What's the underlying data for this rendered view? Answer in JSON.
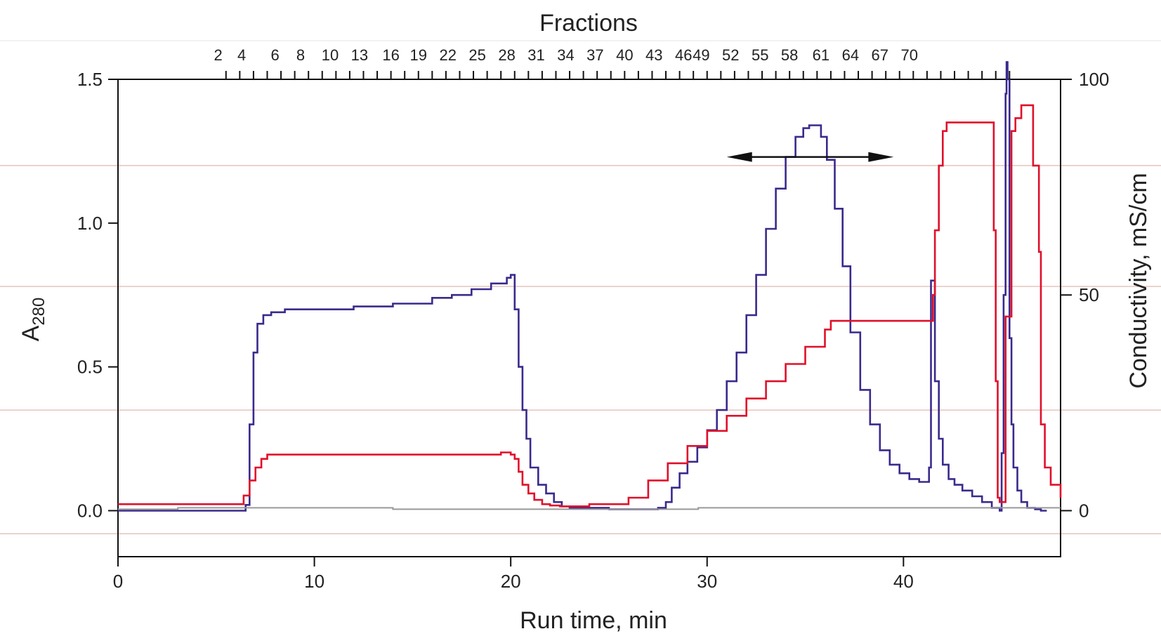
{
  "chart_data": {
    "type": "line",
    "title": "",
    "top_axis": {
      "label": "Fractions",
      "labels": [
        "2",
        "4",
        "6",
        "8",
        "10",
        "13",
        "16",
        "19",
        "22",
        "25",
        "28",
        "31",
        "34",
        "37",
        "40",
        "43",
        "46",
        "49",
        "52",
        "55",
        "58",
        "61",
        "64",
        "67",
        "70"
      ],
      "label_times": [
        5.1,
        6.3,
        8.0,
        9.3,
        10.8,
        12.3,
        13.9,
        15.3,
        16.8,
        18.3,
        19.8,
        21.3,
        22.8,
        24.3,
        25.8,
        27.3,
        28.8,
        29.7,
        31.2,
        32.7,
        34.2,
        35.8,
        37.3,
        38.8,
        40.3
      ],
      "tick_times": [
        5.5,
        6.2,
        6.9,
        7.6,
        8.3,
        9.0,
        9.7,
        10.4,
        11.1,
        11.8,
        12.5,
        13.2,
        13.9,
        14.6,
        15.3,
        16.0,
        16.7,
        17.4,
        18.1,
        18.8,
        19.5,
        20.2,
        20.9,
        21.6,
        22.3,
        23.0,
        23.7,
        24.4,
        25.1,
        25.8,
        26.5,
        27.2,
        27.9,
        28.6,
        29.3,
        30.0,
        30.7,
        31.4,
        32.1,
        32.8,
        33.5,
        34.2,
        34.9,
        35.6,
        36.3,
        37.0,
        37.7,
        38.4,
        39.1,
        39.8,
        40.5,
        41.2,
        41.9,
        42.6,
        43.3,
        44.0,
        44.7,
        45.4
      ]
    },
    "xlabel": "Run time, min",
    "xlim": [
      0,
      48
    ],
    "xticks": [
      0,
      10,
      20,
      30,
      40
    ],
    "ylabel_main": "A",
    "ylabel_sub": "280",
    "ylim": [
      -0.16,
      1.5
    ],
    "yticks": [
      0.0,
      0.5,
      1.0,
      1.5
    ],
    "yticks_labels": [
      "0.0",
      "0.5",
      "1.0",
      "1.5"
    ],
    "y2label": "Conductivity, mS/cm",
    "y2lim": [
      -10.67,
      100
    ],
    "y2ticks": [
      0,
      50,
      100
    ],
    "y2ticks_labels": [
      "0",
      "50",
      "100"
    ],
    "grid_lines_y": [
      1.2,
      0.78,
      0.35,
      -0.08
    ],
    "arrow": {
      "from": 31.0,
      "to": 39.5,
      "y": 1.23
    },
    "series": [
      {
        "name": "",
        "color": "#3a2a8c",
        "x": [
          0,
          6.3,
          6.5,
          6.7,
          6.9,
          7.1,
          7.4,
          7.8,
          8.5,
          10,
          12,
          14,
          16,
          17,
          18,
          19,
          19.8,
          20.0,
          20.2,
          20.4,
          20.6,
          20.8,
          21.0,
          21.4,
          21.8,
          22.2,
          22.6,
          23.0,
          23.5,
          24.0,
          24.5,
          25.0,
          26.0,
          27.0,
          27.5,
          27.9,
          28.2,
          28.6,
          29.0,
          29.5,
          30.0,
          30.5,
          31.0,
          31.5,
          32.0,
          32.5,
          33.0,
          33.5,
          34.0,
          34.5,
          34.9,
          35.2,
          35.5,
          35.8,
          36.1,
          36.5,
          36.9,
          37.3,
          37.8,
          38.3,
          38.8,
          39.3,
          39.8,
          40.3,
          40.8,
          41.0,
          41.3,
          41.4,
          41.6,
          41.8,
          42.0,
          42.3,
          42.6,
          43.0,
          43.5,
          44.0,
          44.5,
          44.9,
          45.0,
          45.1,
          45.2,
          45.25,
          45.3,
          45.4,
          45.5,
          45.6,
          45.8,
          46.0,
          46.3,
          46.7,
          47.0,
          47.3
        ],
        "y": [
          0.0,
          0.0,
          0.02,
          0.3,
          0.55,
          0.65,
          0.68,
          0.69,
          0.7,
          0.7,
          0.71,
          0.72,
          0.74,
          0.75,
          0.77,
          0.79,
          0.81,
          0.82,
          0.7,
          0.5,
          0.35,
          0.25,
          0.15,
          0.09,
          0.06,
          0.03,
          0.015,
          0.01,
          0.01,
          0.01,
          0.01,
          0.005,
          0.005,
          0.005,
          0.01,
          0.03,
          0.08,
          0.13,
          0.17,
          0.22,
          0.28,
          0.35,
          0.45,
          0.55,
          0.68,
          0.82,
          0.98,
          1.12,
          1.23,
          1.3,
          1.33,
          1.34,
          1.34,
          1.3,
          1.22,
          1.05,
          0.85,
          0.62,
          0.42,
          0.3,
          0.21,
          0.16,
          0.13,
          0.11,
          0.1,
          0.1,
          0.15,
          0.8,
          0.45,
          0.25,
          0.16,
          0.11,
          0.09,
          0.07,
          0.05,
          0.03,
          0.01,
          0.0,
          0.2,
          0.75,
          1.45,
          1.56,
          1.5,
          0.6,
          0.3,
          0.15,
          0.07,
          0.03,
          0.01,
          0.005,
          0.0,
          0.0
        ]
      },
      {
        "name": "",
        "color": "#e0102a",
        "x": [
          0,
          6.3,
          6.4,
          6.7,
          7.0,
          7.3,
          7.6,
          7.9,
          8.5,
          10,
          15,
          19.0,
          19.5,
          19.8,
          20.0,
          20.2,
          20.4,
          20.6,
          20.9,
          21.2,
          21.6,
          22.0,
          22.5,
          23.0,
          23.5,
          24.0,
          25.0,
          25.6,
          26.0,
          27.0,
          28.0,
          29.0,
          30.0,
          31.0,
          32.0,
          33.0,
          34.0,
          35.0,
          36.0,
          36.3,
          37.0,
          38.0,
          39.0,
          40.0,
          41.0,
          41.3,
          41.4,
          41.5,
          41.6,
          41.8,
          42.0,
          42.2,
          43.0,
          43.5,
          44.0,
          44.3,
          44.5,
          44.6,
          44.7,
          44.8,
          44.9,
          45.0,
          45.2,
          45.5,
          45.7,
          46.0,
          46.3,
          46.6,
          46.9,
          47.0,
          47.2,
          47.5,
          48.0
        ],
        "y": [
          1.5,
          1.5,
          3.5,
          7,
          10,
          12,
          13,
          13,
          13,
          13,
          13,
          13,
          13.5,
          13.5,
          13,
          12,
          9,
          6,
          4,
          2.5,
          1.5,
          1.2,
          1.0,
          1.0,
          1.0,
          1.5,
          1.5,
          1.5,
          3,
          7,
          11,
          15,
          18.5,
          22,
          26,
          30,
          34,
          38,
          42,
          44,
          44,
          44,
          44,
          44,
          44,
          44,
          44,
          50,
          65,
          80,
          88,
          90,
          90,
          90,
          90,
          90,
          90,
          65,
          30,
          3,
          2,
          2,
          45,
          88,
          91,
          94,
          94,
          80,
          60,
          20,
          10,
          6,
          3
        ]
      },
      {
        "name": "",
        "color": "#999999",
        "x": [
          0,
          3.0,
          3.05,
          13.9,
          14.0,
          29.5,
          29.55,
          48
        ],
        "y": [
          0.005,
          0.005,
          0.01,
          0.01,
          0.005,
          0.005,
          0.01,
          0.01
        ]
      }
    ]
  }
}
